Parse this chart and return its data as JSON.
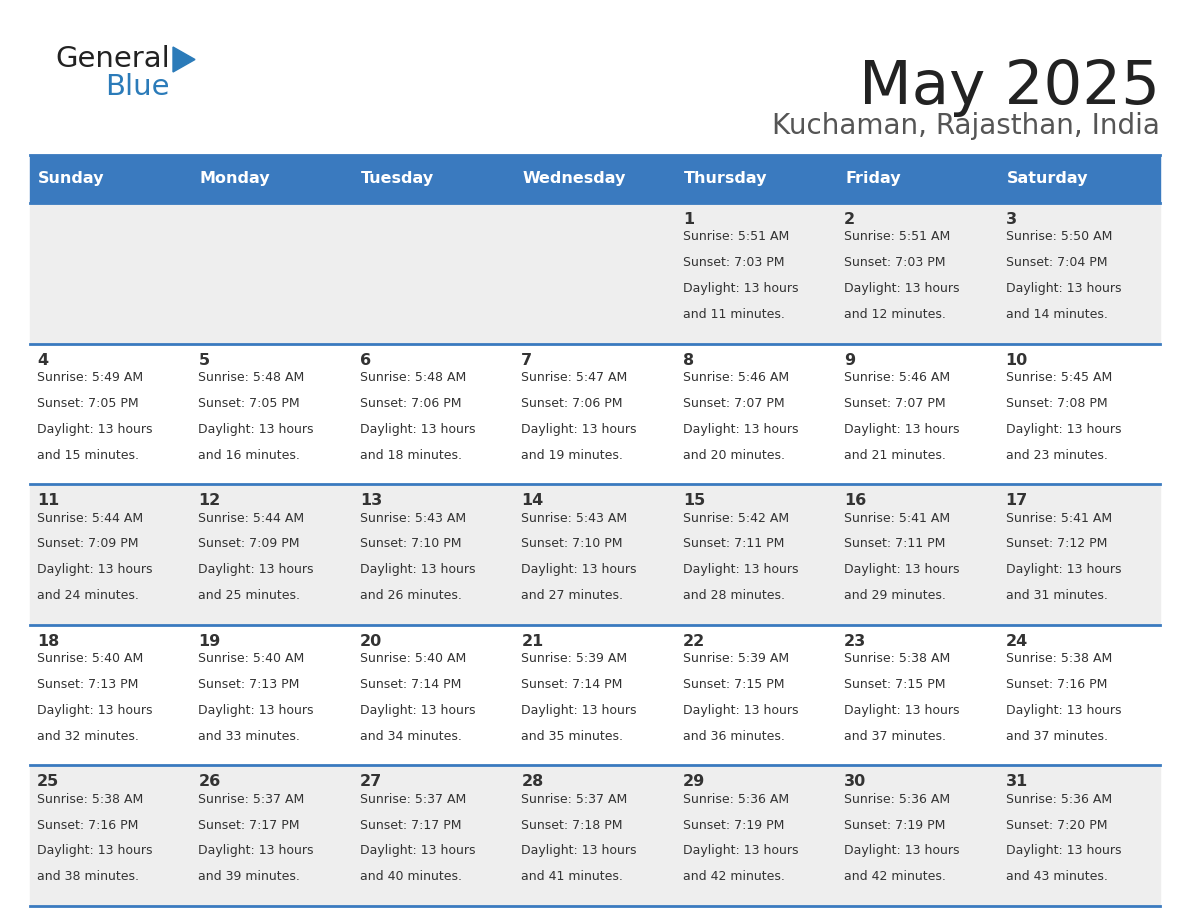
{
  "title": "May 2025",
  "subtitle": "Kuchaman, Rajasthan, India",
  "days_of_week": [
    "Sunday",
    "Monday",
    "Tuesday",
    "Wednesday",
    "Thursday",
    "Friday",
    "Saturday"
  ],
  "header_bg": "#3a7abf",
  "header_text": "#ffffff",
  "row_bg_odd": "#ffffff",
  "row_bg_even": "#eeeeee",
  "cell_text": "#333333",
  "border_color": "#3a7abf",
  "title_color": "#222222",
  "subtitle_color": "#555555",
  "logo_general_color": "#222222",
  "logo_blue_color": "#2b7bb9",
  "weeks": [
    [
      {
        "day": null,
        "sunrise": null,
        "sunset": null,
        "daylight": null
      },
      {
        "day": null,
        "sunrise": null,
        "sunset": null,
        "daylight": null
      },
      {
        "day": null,
        "sunrise": null,
        "sunset": null,
        "daylight": null
      },
      {
        "day": null,
        "sunrise": null,
        "sunset": null,
        "daylight": null
      },
      {
        "day": 1,
        "sunrise": "5:51 AM",
        "sunset": "7:03 PM",
        "daylight": "13 hours and 11 minutes."
      },
      {
        "day": 2,
        "sunrise": "5:51 AM",
        "sunset": "7:03 PM",
        "daylight": "13 hours and 12 minutes."
      },
      {
        "day": 3,
        "sunrise": "5:50 AM",
        "sunset": "7:04 PM",
        "daylight": "13 hours and 14 minutes."
      }
    ],
    [
      {
        "day": 4,
        "sunrise": "5:49 AM",
        "sunset": "7:05 PM",
        "daylight": "13 hours and 15 minutes."
      },
      {
        "day": 5,
        "sunrise": "5:48 AM",
        "sunset": "7:05 PM",
        "daylight": "13 hours and 16 minutes."
      },
      {
        "day": 6,
        "sunrise": "5:48 AM",
        "sunset": "7:06 PM",
        "daylight": "13 hours and 18 minutes."
      },
      {
        "day": 7,
        "sunrise": "5:47 AM",
        "sunset": "7:06 PM",
        "daylight": "13 hours and 19 minutes."
      },
      {
        "day": 8,
        "sunrise": "5:46 AM",
        "sunset": "7:07 PM",
        "daylight": "13 hours and 20 minutes."
      },
      {
        "day": 9,
        "sunrise": "5:46 AM",
        "sunset": "7:07 PM",
        "daylight": "13 hours and 21 minutes."
      },
      {
        "day": 10,
        "sunrise": "5:45 AM",
        "sunset": "7:08 PM",
        "daylight": "13 hours and 23 minutes."
      }
    ],
    [
      {
        "day": 11,
        "sunrise": "5:44 AM",
        "sunset": "7:09 PM",
        "daylight": "13 hours and 24 minutes."
      },
      {
        "day": 12,
        "sunrise": "5:44 AM",
        "sunset": "7:09 PM",
        "daylight": "13 hours and 25 minutes."
      },
      {
        "day": 13,
        "sunrise": "5:43 AM",
        "sunset": "7:10 PM",
        "daylight": "13 hours and 26 minutes."
      },
      {
        "day": 14,
        "sunrise": "5:43 AM",
        "sunset": "7:10 PM",
        "daylight": "13 hours and 27 minutes."
      },
      {
        "day": 15,
        "sunrise": "5:42 AM",
        "sunset": "7:11 PM",
        "daylight": "13 hours and 28 minutes."
      },
      {
        "day": 16,
        "sunrise": "5:41 AM",
        "sunset": "7:11 PM",
        "daylight": "13 hours and 29 minutes."
      },
      {
        "day": 17,
        "sunrise": "5:41 AM",
        "sunset": "7:12 PM",
        "daylight": "13 hours and 31 minutes."
      }
    ],
    [
      {
        "day": 18,
        "sunrise": "5:40 AM",
        "sunset": "7:13 PM",
        "daylight": "13 hours and 32 minutes."
      },
      {
        "day": 19,
        "sunrise": "5:40 AM",
        "sunset": "7:13 PM",
        "daylight": "13 hours and 33 minutes."
      },
      {
        "day": 20,
        "sunrise": "5:40 AM",
        "sunset": "7:14 PM",
        "daylight": "13 hours and 34 minutes."
      },
      {
        "day": 21,
        "sunrise": "5:39 AM",
        "sunset": "7:14 PM",
        "daylight": "13 hours and 35 minutes."
      },
      {
        "day": 22,
        "sunrise": "5:39 AM",
        "sunset": "7:15 PM",
        "daylight": "13 hours and 36 minutes."
      },
      {
        "day": 23,
        "sunrise": "5:38 AM",
        "sunset": "7:15 PM",
        "daylight": "13 hours and 37 minutes."
      },
      {
        "day": 24,
        "sunrise": "5:38 AM",
        "sunset": "7:16 PM",
        "daylight": "13 hours and 37 minutes."
      }
    ],
    [
      {
        "day": 25,
        "sunrise": "5:38 AM",
        "sunset": "7:16 PM",
        "daylight": "13 hours and 38 minutes."
      },
      {
        "day": 26,
        "sunrise": "5:37 AM",
        "sunset": "7:17 PM",
        "daylight": "13 hours and 39 minutes."
      },
      {
        "day": 27,
        "sunrise": "5:37 AM",
        "sunset": "7:17 PM",
        "daylight": "13 hours and 40 minutes."
      },
      {
        "day": 28,
        "sunrise": "5:37 AM",
        "sunset": "7:18 PM",
        "daylight": "13 hours and 41 minutes."
      },
      {
        "day": 29,
        "sunrise": "5:36 AM",
        "sunset": "7:19 PM",
        "daylight": "13 hours and 42 minutes."
      },
      {
        "day": 30,
        "sunrise": "5:36 AM",
        "sunset": "7:19 PM",
        "daylight": "13 hours and 42 minutes."
      },
      {
        "day": 31,
        "sunrise": "5:36 AM",
        "sunset": "7:20 PM",
        "daylight": "13 hours and 43 minutes."
      }
    ]
  ]
}
